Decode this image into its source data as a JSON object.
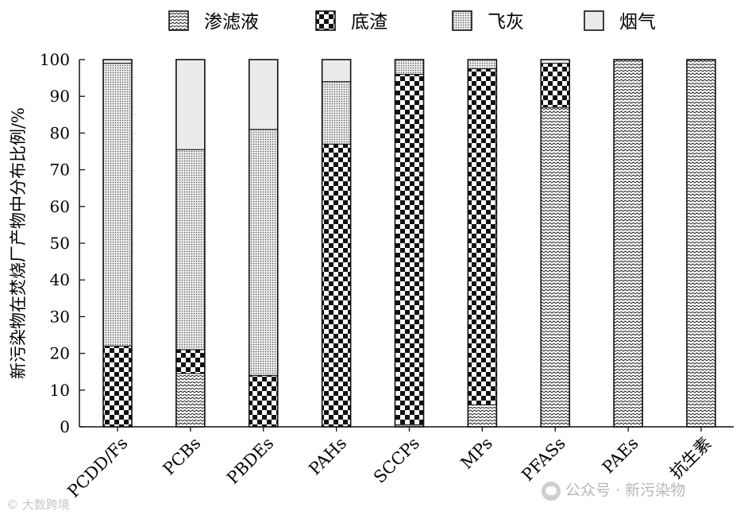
{
  "chart_data": {
    "type": "bar",
    "stacked": true,
    "ylabel": "新污染物在焚烧厂产物中分布比例/%",
    "xlabel": "",
    "ylim": [
      0,
      100
    ],
    "yticks": [
      0,
      10,
      20,
      30,
      40,
      50,
      60,
      70,
      80,
      90,
      100
    ],
    "categories": [
      "PCDD/Fs",
      "PCBs",
      "PBDEs",
      "PAHs",
      "SCCPs",
      "MPs",
      "PFASs",
      "PAEs",
      "抗生素"
    ],
    "series": [
      {
        "name": "渗滤液",
        "pattern": "wave",
        "values": [
          0,
          14.5,
          0,
          0,
          0.5,
          6,
          87,
          100,
          100
        ]
      },
      {
        "name": "底渣",
        "pattern": "checker",
        "values": [
          22,
          6.5,
          14,
          77,
          95.5,
          91.5,
          12,
          0,
          0
        ]
      },
      {
        "name": "飞灰",
        "pattern": "dots",
        "values": [
          77,
          54.5,
          67,
          17,
          4,
          2.5,
          0,
          0,
          0
        ]
      },
      {
        "name": "烟气",
        "pattern": "light",
        "values": [
          1,
          24.5,
          19,
          6,
          0,
          0,
          1,
          0,
          0
        ]
      }
    ],
    "legend_position": "top",
    "grid": false
  },
  "watermarks": {
    "left": "© 大数跨境",
    "right": "公众号 · 新污染物"
  }
}
